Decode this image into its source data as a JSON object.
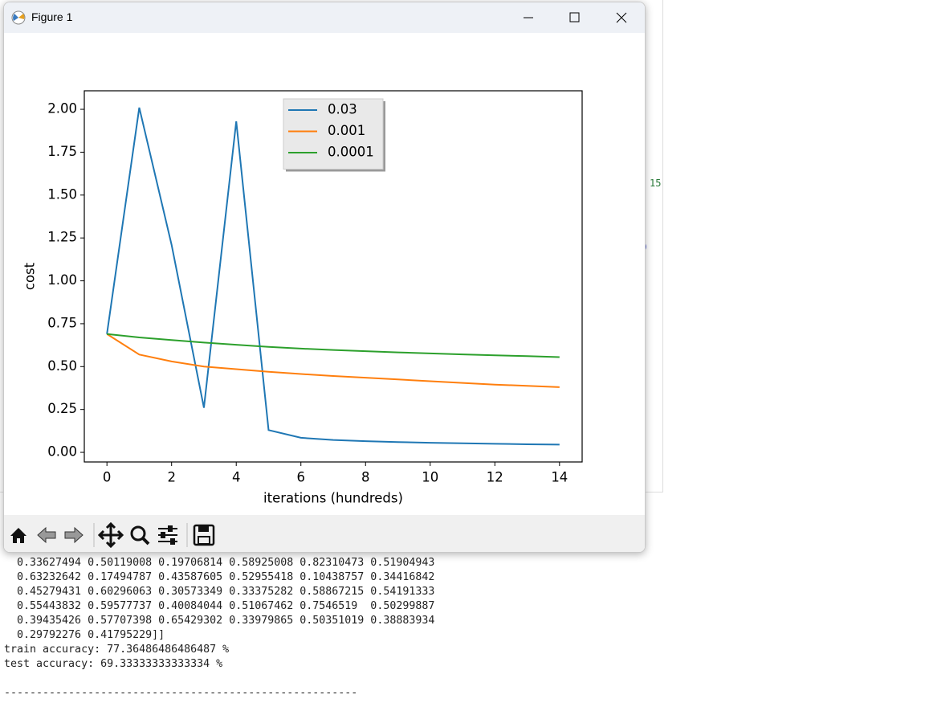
{
  "window": {
    "title": "Figure 1"
  },
  "background": {
    "fragments": [
      "15",
      ")"
    ]
  },
  "chart_data": {
    "type": "line",
    "x_label": "iterations (hundreds)",
    "y_label": "cost",
    "x": [
      0,
      1,
      2,
      3,
      4,
      5,
      6,
      7,
      8,
      9,
      10,
      11,
      12,
      13,
      14
    ],
    "series": [
      {
        "name": "0.03",
        "color": "#1f77b4",
        "values": [
          0.69,
          2.01,
          1.21,
          0.26,
          1.93,
          0.13,
          0.085,
          0.072,
          0.065,
          0.06,
          0.056,
          0.053,
          0.05,
          0.047,
          0.045
        ]
      },
      {
        "name": "0.001",
        "color": "#ff7f0e",
        "values": [
          0.69,
          0.57,
          0.53,
          0.5,
          0.485,
          0.47,
          0.457,
          0.445,
          0.435,
          0.425,
          0.415,
          0.405,
          0.395,
          0.388,
          0.38
        ]
      },
      {
        "name": "0.0001",
        "color": "#2ca02c",
        "values": [
          0.69,
          0.67,
          0.655,
          0.64,
          0.627,
          0.615,
          0.605,
          0.597,
          0.59,
          0.583,
          0.577,
          0.571,
          0.566,
          0.561,
          0.555
        ]
      }
    ],
    "xlim": [
      -0.7,
      14.7
    ],
    "ylim": [
      -0.056,
      2.108
    ],
    "xticks": [
      0,
      2,
      4,
      6,
      8,
      10,
      12,
      14
    ],
    "yticks": [
      {
        "value": 0,
        "label": "0.00"
      },
      {
        "value": 0.25,
        "label": "0.25"
      },
      {
        "value": 0.5,
        "label": "0.50"
      },
      {
        "value": 0.75,
        "label": "0.75"
      },
      {
        "value": 1,
        "label": "1.00"
      },
      {
        "value": 1.25,
        "label": "1.25"
      },
      {
        "value": 1.5,
        "label": "1.50"
      },
      {
        "value": 1.75,
        "label": "1.75"
      },
      {
        "value": 2,
        "label": "2.00"
      }
    ],
    "legend": "upper center",
    "grid": false
  },
  "console": {
    "lines": [
      "  0.33627494 0.50119008 0.19706814 0.58925008 0.82310473 0.51904943",
      "  0.63232642 0.17494787 0.43587605 0.52955418 0.10438757 0.34416842",
      "  0.45279431 0.60296063 0.30573349 0.33375282 0.58867215 0.54191333",
      "  0.55443832 0.59577737 0.40084044 0.51067462 0.7546519  0.50299887",
      "  0.39435426 0.57707398 0.65429302 0.33979865 0.50351019 0.38883934",
      "  0.29792276 0.41795229]]",
      "train accuracy: 77.36486486486487 %",
      "test accuracy: 69.33333333333334 %"
    ],
    "separator": "-------------------------------------------------------"
  }
}
